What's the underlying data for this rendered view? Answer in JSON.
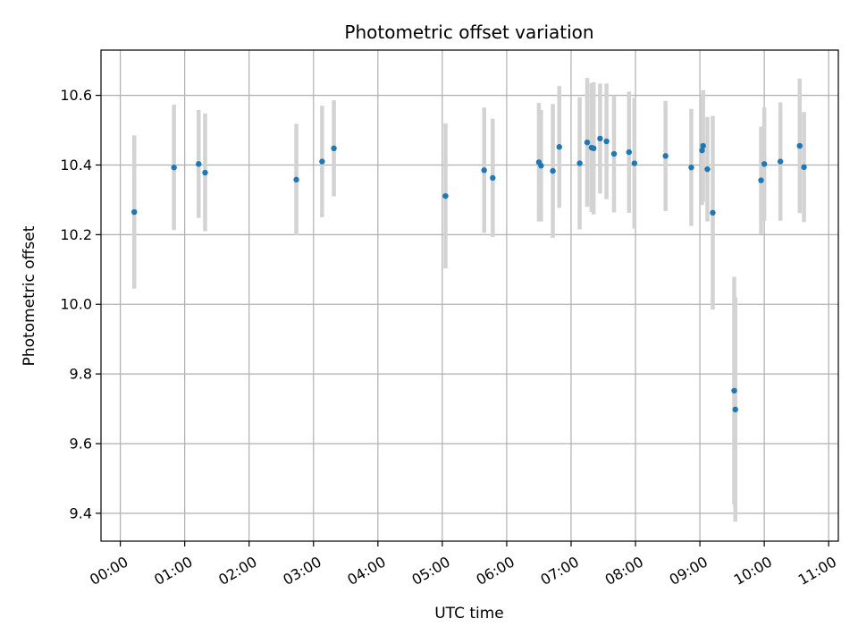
{
  "chart_data": {
    "type": "scatter",
    "title": "Photometric offset variation",
    "xlabel": "UTC time",
    "ylabel": "Photometric offset",
    "x_unit": "UTC hours",
    "xlim": [
      -0.3,
      11.15
    ],
    "ylim": [
      9.32,
      10.73
    ],
    "grid": true,
    "x_ticks": [
      {
        "value": 0,
        "label": "00:00"
      },
      {
        "value": 1,
        "label": "01:00"
      },
      {
        "value": 2,
        "label": "02:00"
      },
      {
        "value": 3,
        "label": "03:00"
      },
      {
        "value": 4,
        "label": "04:00"
      },
      {
        "value": 5,
        "label": "05:00"
      },
      {
        "value": 6,
        "label": "06:00"
      },
      {
        "value": 7,
        "label": "07:00"
      },
      {
        "value": 8,
        "label": "08:00"
      },
      {
        "value": 9,
        "label": "09:00"
      },
      {
        "value": 10,
        "label": "10:00"
      },
      {
        "value": 11,
        "label": "11:00"
      }
    ],
    "y_ticks": [
      {
        "value": 9.4,
        "label": "9.4"
      },
      {
        "value": 9.6,
        "label": "9.6"
      },
      {
        "value": 9.8,
        "label": "9.8"
      },
      {
        "value": 10.0,
        "label": "10.0"
      },
      {
        "value": 10.2,
        "label": "10.2"
      },
      {
        "value": 10.4,
        "label": "10.4"
      },
      {
        "value": 10.6,
        "label": "10.6"
      }
    ],
    "series": [
      {
        "marker_color": "#1f77b4",
        "errorbar_color": "#d3d3d3",
        "points": [
          {
            "x": "00:13",
            "y": 10.265,
            "err_low": 10.045,
            "err_high": 10.485
          },
          {
            "x": "00:50",
            "y": 10.393,
            "err_low": 10.213,
            "err_high": 10.573
          },
          {
            "x": "01:13",
            "y": 10.403,
            "err_low": 10.248,
            "err_high": 10.558
          },
          {
            "x": "01:19",
            "y": 10.378,
            "err_low": 10.21,
            "err_high": 10.548
          },
          {
            "x": "02:44",
            "y": 10.358,
            "err_low": 10.198,
            "err_high": 10.518
          },
          {
            "x": "03:08",
            "y": 10.41,
            "err_low": 10.25,
            "err_high": 10.57
          },
          {
            "x": "03:19",
            "y": 10.448,
            "err_low": 10.31,
            "err_high": 10.586
          },
          {
            "x": "05:03",
            "y": 10.311,
            "err_low": 10.103,
            "err_high": 10.519
          },
          {
            "x": "05:39",
            "y": 10.385,
            "err_low": 10.205,
            "err_high": 10.565
          },
          {
            "x": "05:47",
            "y": 10.363,
            "err_low": 10.193,
            "err_high": 10.533
          },
          {
            "x": "06:30",
            "y": 10.408,
            "err_low": 10.238,
            "err_high": 10.578
          },
          {
            "x": "06:32",
            "y": 10.398,
            "err_low": 10.238,
            "err_high": 10.558
          },
          {
            "x": "06:43",
            "y": 10.383,
            "err_low": 10.191,
            "err_high": 10.575
          },
          {
            "x": "06:49",
            "y": 10.452,
            "err_low": 10.277,
            "err_high": 10.627
          },
          {
            "x": "07:08",
            "y": 10.405,
            "err_low": 10.215,
            "err_high": 10.595
          },
          {
            "x": "07:15",
            "y": 10.465,
            "err_low": 10.28,
            "err_high": 10.65
          },
          {
            "x": "07:19",
            "y": 10.45,
            "err_low": 10.265,
            "err_high": 10.635
          },
          {
            "x": "07:21",
            "y": 10.448,
            "err_low": 10.258,
            "err_high": 10.638
          },
          {
            "x": "07:27",
            "y": 10.476,
            "err_low": 10.318,
            "err_high": 10.634
          },
          {
            "x": "07:33",
            "y": 10.468,
            "err_low": 10.302,
            "err_high": 10.634
          },
          {
            "x": "07:40",
            "y": 10.432,
            "err_low": 10.264,
            "err_high": 10.6
          },
          {
            "x": "07:54",
            "y": 10.437,
            "err_low": 10.263,
            "err_high": 10.611
          },
          {
            "x": "07:59",
            "y": 10.405,
            "err_low": 10.217,
            "err_high": 10.593
          },
          {
            "x": "08:28",
            "y": 10.426,
            "err_low": 10.268,
            "err_high": 10.584
          },
          {
            "x": "08:52",
            "y": 10.393,
            "err_low": 10.225,
            "err_high": 10.561
          },
          {
            "x": "09:02",
            "y": 10.442,
            "err_low": 10.285,
            "err_high": 10.599
          },
          {
            "x": "09:03",
            "y": 10.455,
            "err_low": 10.295,
            "err_high": 10.615
          },
          {
            "x": "09:07",
            "y": 10.388,
            "err_low": 10.238,
            "err_high": 10.538
          },
          {
            "x": "09:12",
            "y": 10.263,
            "err_low": 9.985,
            "err_high": 10.541
          },
          {
            "x": "09:32",
            "y": 9.752,
            "err_low": 9.425,
            "err_high": 10.079
          },
          {
            "x": "09:33",
            "y": 9.698,
            "err_low": 9.376,
            "err_high": 10.02
          },
          {
            "x": "09:57",
            "y": 10.356,
            "err_low": 10.202,
            "err_high": 10.51
          },
          {
            "x": "10:00",
            "y": 10.403,
            "err_low": 10.24,
            "err_high": 10.566
          },
          {
            "x": "10:15",
            "y": 10.41,
            "err_low": 10.24,
            "err_high": 10.58
          },
          {
            "x": "10:33",
            "y": 10.455,
            "err_low": 10.262,
            "err_high": 10.648
          },
          {
            "x": "10:37",
            "y": 10.394,
            "err_low": 10.236,
            "err_high": 10.552
          }
        ]
      }
    ]
  }
}
